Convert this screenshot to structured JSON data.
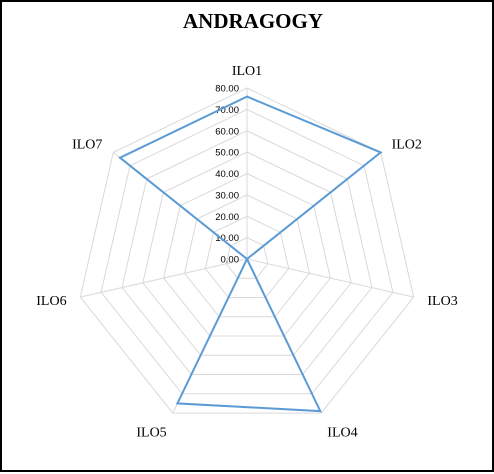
{
  "chart_data": {
    "type": "radar",
    "title": "ANDRAGOGY",
    "categories": [
      "ILO1",
      "ILO2",
      "ILO3",
      "ILO4",
      "ILO5",
      "ILO6",
      "ILO7"
    ],
    "series": [
      {
        "values": [
          76,
          80,
          0,
          79,
          75,
          0,
          76
        ]
      }
    ],
    "rlim": [
      0,
      80
    ],
    "ticks": [
      "0.00",
      "10.00",
      "20.00",
      "30.00",
      "40.00",
      "50.00",
      "60.00",
      "70.00",
      "80.00"
    ],
    "grid": true,
    "colors": {
      "series": "#5B9BD5",
      "grid": "#d9d9d9",
      "frame": "#000000"
    }
  }
}
